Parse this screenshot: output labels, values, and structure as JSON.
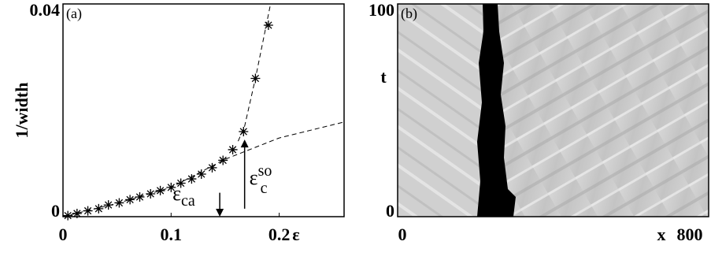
{
  "chart_data": [
    {
      "type": "scatter",
      "label": "(a)",
      "ylabel": "1/width",
      "xlabel": "ε",
      "xlim": [
        0,
        0.26
      ],
      "ylim": [
        0,
        0.04
      ],
      "xticks": [
        0,
        0.1,
        0.2
      ],
      "yticks": [
        0,
        0.04
      ],
      "series": [
        {
          "style": "asterisk",
          "color": "#000000",
          "x": [
            0.0045,
            0.013,
            0.023,
            0.033,
            0.042,
            0.052,
            0.062,
            0.071,
            0.081,
            0.09,
            0.1,
            0.109,
            0.119,
            0.128,
            0.138,
            0.148,
            0.157,
            0.167,
            0.178,
            0.19
          ],
          "values": [
            0.0002,
            0.0006,
            0.0011,
            0.0015,
            0.0022,
            0.0026,
            0.0032,
            0.0037,
            0.0043,
            0.0049,
            0.0055,
            0.0063,
            0.0071,
            0.008,
            0.0092,
            0.0106,
            0.0126,
            0.016,
            0.026,
            0.036
          ]
        },
        {
          "style": "dashed",
          "color": "#000000",
          "x": [
            0,
            0.05,
            0.1,
            0.15,
            0.2,
            0.26
          ],
          "values": [
            0,
            0.0025,
            0.0055,
            0.0108,
            0.0148,
            0.0178
          ]
        },
        {
          "style": "dashed",
          "color": "#000000",
          "x": [
            0.162,
            0.168,
            0.178,
            0.192
          ],
          "values": [
            0.0142,
            0.017,
            0.026,
            0.04
          ]
        }
      ],
      "annotations": [
        {
          "text": "ε",
          "sub": "ca",
          "x": 0.145,
          "from": 0.0045,
          "to": 0
        },
        {
          "text": "ε",
          "sub": "c",
          "sup": "so",
          "x": 0.168,
          "from": 0.0015,
          "to": 0.0145
        }
      ]
    },
    {
      "type": "image",
      "label": "(b)",
      "xlabel": "x",
      "ylabel": "t",
      "xlim": [
        0,
        800
      ],
      "ylim": [
        0,
        100
      ],
      "xticks": [
        0,
        800
      ],
      "yticks": [
        0,
        100
      ]
    }
  ]
}
